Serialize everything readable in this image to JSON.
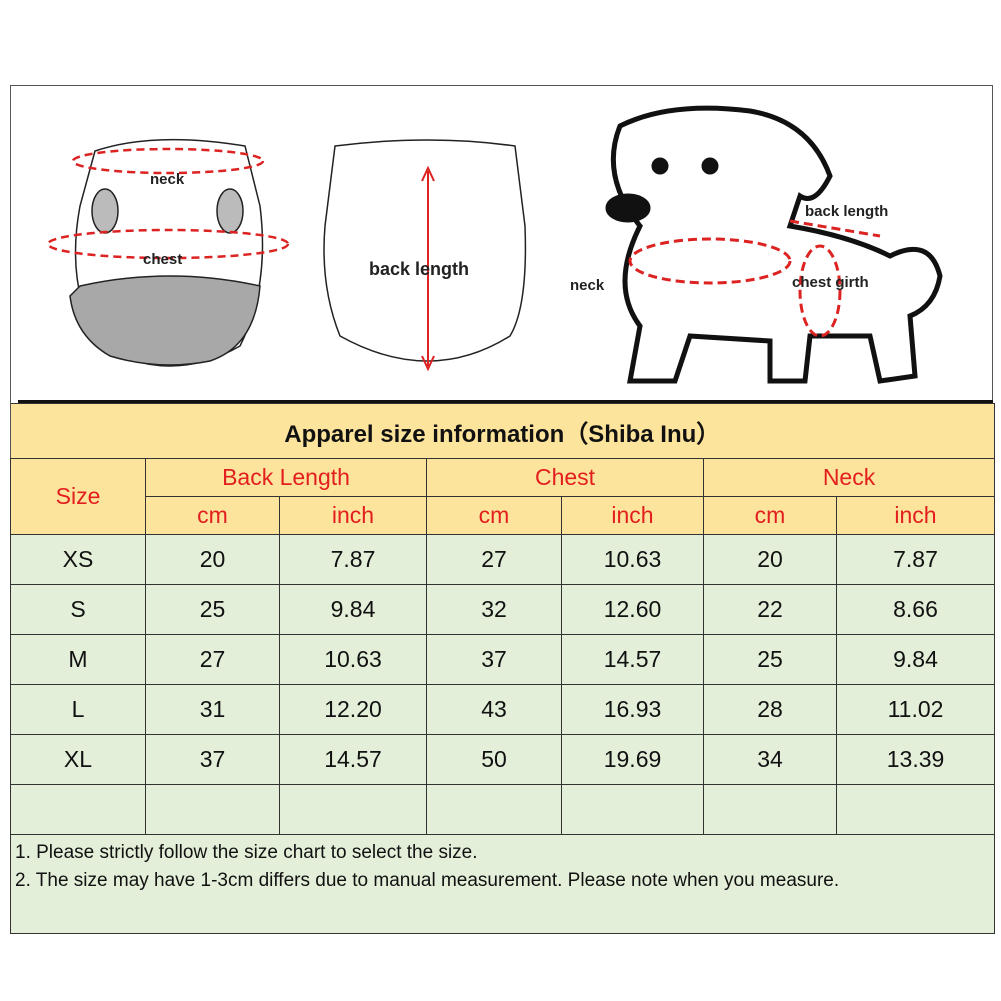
{
  "illustration": {
    "front_labels": [
      "neck",
      "chest"
    ],
    "back_label": "back length",
    "dog_labels": [
      "back length",
      "neck",
      "chest girth"
    ]
  },
  "table": {
    "title": "Apparel  size  information（Shiba Inu）",
    "size_header": "Size",
    "groups": [
      "Back Length",
      "Chest",
      "Neck"
    ],
    "units": [
      "cm",
      "inch",
      "cm",
      "inch",
      "cm",
      "inch"
    ],
    "rows": [
      [
        "XS",
        "20",
        "7.87",
        "27",
        "10.63",
        "20",
        "7.87"
      ],
      [
        "S",
        "25",
        "9.84",
        "32",
        "12.60",
        "22",
        "8.66"
      ],
      [
        "M",
        "27",
        "10.63",
        "37",
        "14.57",
        "25",
        "9.84"
      ],
      [
        "L",
        "31",
        "12.20",
        "43",
        "16.93",
        "28",
        "11.02"
      ],
      [
        "XL",
        "37",
        "14.57",
        "50",
        "19.69",
        "34",
        "13.39"
      ]
    ],
    "notes": [
      "1. Please strictly follow the size chart  to select the size.",
      "2. The size may have 1-3cm differs due to manual measurement. Please note when you measure."
    ]
  },
  "colors": {
    "header_bg": "#fde49c",
    "body_bg": "#e3efd9",
    "header_text": "#e31e1e"
  }
}
